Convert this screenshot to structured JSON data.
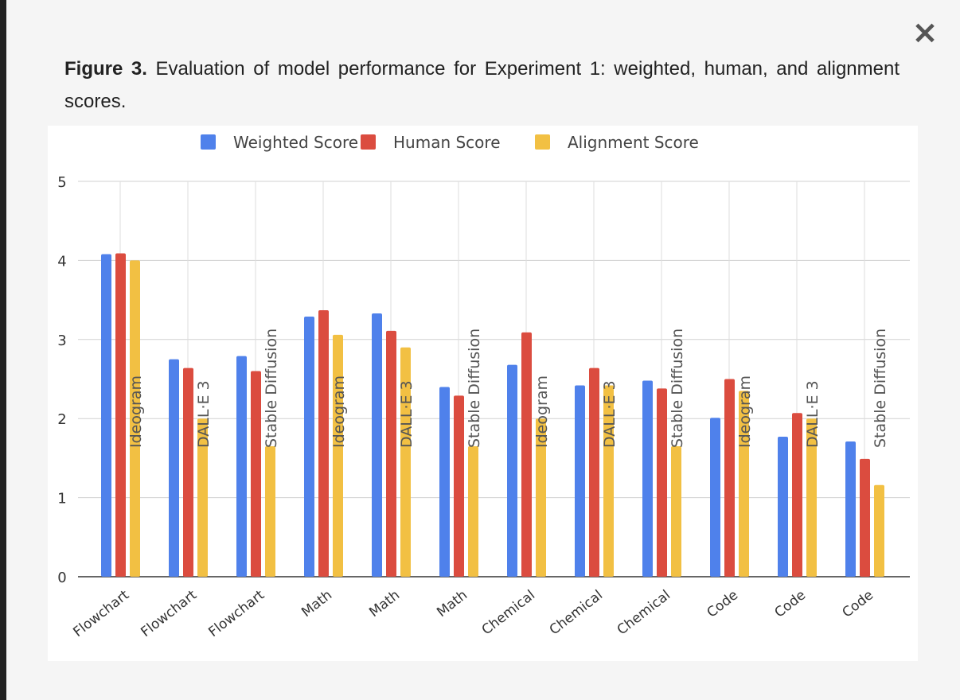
{
  "dialog": {
    "close_label": "×",
    "caption_label": "Figure 3.",
    "caption_text": " Evaluation of model performance for Experiment 1: weighted, human, and alignment scores."
  },
  "chart_data": {
    "type": "bar",
    "categories": [
      "Flowchart",
      "Flowchart",
      "Flowchart",
      "Math",
      "Math",
      "Math",
      "Chemical",
      "Chemical",
      "Chemical",
      "Code",
      "Code",
      "Code"
    ],
    "models": [
      "Ideogram",
      "DALL·E 3",
      "Stable Diffusion",
      "Ideogram",
      "DALL·E 3",
      "Stable Diffusion",
      "Ideogram",
      "DALL·E 3",
      "Stable Diffusion",
      "Ideogram",
      "DALL·E 3",
      "Stable Diffusion"
    ],
    "series": [
      {
        "name": "Weighted Score",
        "color": "#4f81eb",
        "values": [
          4.08,
          2.75,
          2.79,
          3.29,
          3.33,
          2.4,
          2.68,
          2.42,
          2.48,
          2.01,
          1.77,
          1.71
        ]
      },
      {
        "name": "Human Score",
        "color": "#db4c3f",
        "values": [
          4.09,
          2.64,
          2.6,
          3.37,
          3.11,
          2.29,
          3.09,
          2.64,
          2.38,
          2.5,
          2.07,
          1.49
        ]
      },
      {
        "name": "Alignment Score",
        "color": "#f2c043",
        "values": [
          4.0,
          2.0,
          1.65,
          3.06,
          2.9,
          1.65,
          2.0,
          2.42,
          1.65,
          2.35,
          2.0,
          1.16
        ]
      }
    ],
    "ylim": [
      0,
      5
    ],
    "yticks": [
      0,
      1,
      2,
      3,
      4,
      5
    ],
    "grid": true,
    "legend_position": "top-center",
    "xlabel": "",
    "ylabel": ""
  }
}
